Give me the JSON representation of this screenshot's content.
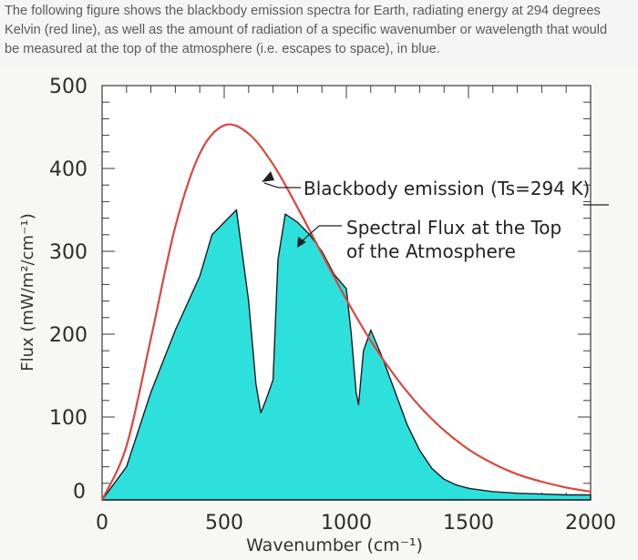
{
  "intro": {
    "line1": "The following figure shows the blackbody emission spectra for Earth, radiating energy at 294 degrees",
    "line2": "Kelvin (red line), as well as the amount of radiation of a specific wavenumber or wavelength that would",
    "line3": "be measured at the top of the atmosphere (i.e. escapes to space), in blue."
  },
  "chart_data": {
    "type": "area",
    "title": "",
    "xlabel": "Wavenumber (cm⁻¹)",
    "ylabel": "Flux (mW/m²/cm⁻¹)",
    "xlim": [
      0,
      2000
    ],
    "ylim": [
      0,
      500
    ],
    "xticks": [
      "0",
      "500",
      "1000",
      "1500",
      "2000"
    ],
    "yticks": [
      "0",
      "100",
      "200",
      "300",
      "400",
      "500"
    ],
    "grid": false,
    "series": [
      {
        "name": "Blackbody emission (Ts=294 K)",
        "style": "line",
        "color": "#d8473f",
        "x": [
          0,
          100,
          200,
          300,
          400,
          500,
          600,
          700,
          800,
          900,
          1000,
          1100,
          1200,
          1300,
          1400,
          1500,
          1600,
          1700,
          1800,
          1900,
          2000
        ],
        "y": [
          0,
          65,
          195,
          330,
          418,
          452,
          442,
          405,
          353,
          297,
          242,
          192,
          149,
          113,
          84,
          61,
          44,
          31,
          22,
          15,
          10
        ]
      },
      {
        "name": "Spectral Flux at the Top of the Atmosphere",
        "style": "filled",
        "color": "#2ee0dc",
        "edge": "#1c1c1c",
        "x": [
          0,
          100,
          200,
          300,
          400,
          450,
          500,
          550,
          600,
          630,
          650,
          670,
          700,
          720,
          750,
          800,
          850,
          900,
          950,
          1000,
          1020,
          1040,
          1050,
          1070,
          1100,
          1150,
          1200,
          1250,
          1300,
          1350,
          1400,
          1450,
          1500,
          1600,
          1700,
          1800,
          1900,
          2000
        ],
        "y": [
          0,
          40,
          130,
          205,
          270,
          320,
          335,
          350,
          240,
          140,
          105,
          120,
          145,
          290,
          345,
          335,
          320,
          300,
          272,
          255,
          200,
          130,
          115,
          180,
          205,
          170,
          130,
          90,
          60,
          38,
          25,
          18,
          14,
          10,
          8,
          7,
          6,
          6
        ]
      }
    ],
    "annotations": [
      {
        "text": "Blackbody emission (Ts=294 K)",
        "points_to": "Blackbody emission (Ts=294 K)"
      },
      {
        "text_line1": "Spectral Flux at the Top",
        "text_line2": "of the Atmosphere",
        "points_to": "Spectral Flux at the Top of the Atmosphere"
      }
    ]
  }
}
